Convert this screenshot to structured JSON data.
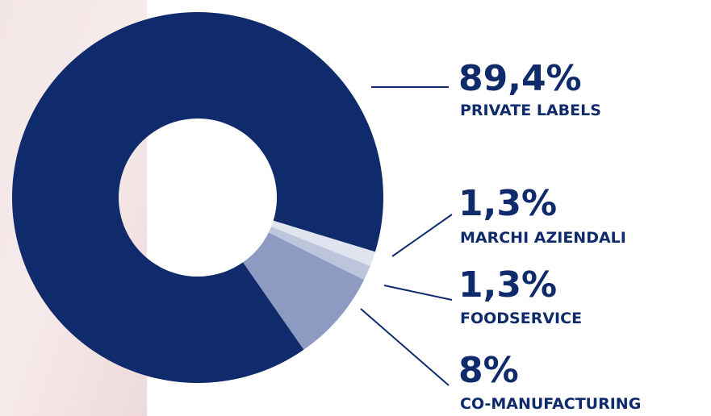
{
  "chart_data": {
    "type": "pie",
    "categories": [
      "PRIVATE LABELS",
      "MARCHI AZIENDALI",
      "FOODSERVICE",
      "CO-MANUFACTURING"
    ],
    "values": [
      89.4,
      1.3,
      1.3,
      8
    ],
    "value_labels": [
      "89,4%",
      "1,3%",
      "1,3%",
      "8%"
    ],
    "colors": [
      "#0f2b6c",
      "#dfe4ef",
      "#bcc5dc",
      "#8d9bc3"
    ],
    "hole": true
  }
}
